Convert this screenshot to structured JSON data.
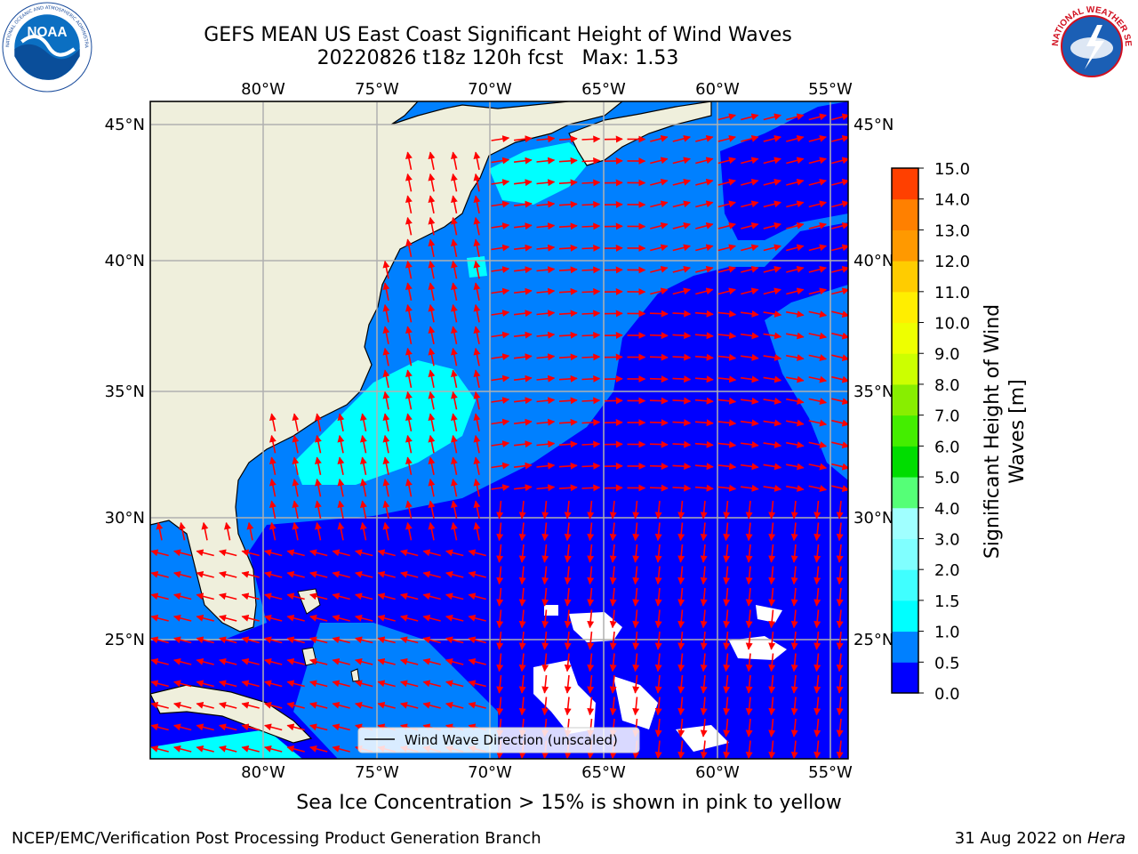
{
  "header": {
    "title_line1": "GEFS MEAN US East Coast Significant Height of Wind Waves",
    "title_line2": "20220826 t18z 120h fcst   Max: 1.53"
  },
  "logos": {
    "noaa": {
      "text": "NOAA",
      "ring_text": "NATIONAL OCEANIC AND ATMOSPHERIC ADMINISTRATION · U.S. DEPARTMENT OF COMMERCE"
    },
    "nws": {
      "ring_text": "NATIONAL WEATHER SERVICE"
    }
  },
  "map": {
    "lon_ticks": [
      "80°W",
      "75°W",
      "70°W",
      "65°W",
      "60°W",
      "55°W"
    ],
    "lat_ticks": [
      "45°N",
      "40°N",
      "35°N",
      "30°N",
      "25°N"
    ],
    "legend_label": "Wind Wave Direction (unscaled)",
    "land_color": "#efefdc",
    "grid_color": "#b0b0b0",
    "arrow_color": "#ff0000"
  },
  "colorbar": {
    "label_line1": "Significant Height of Wind",
    "label_line2": "Waves [m]",
    "ticks": [
      "0.0",
      "0.5",
      "1.0",
      "1.5",
      "2.0",
      "3.0",
      "4.0",
      "5.0",
      "6.0",
      "7.0",
      "8.0",
      "9.0",
      "10.0",
      "11.0",
      "12.0",
      "13.0",
      "14.0",
      "15.0"
    ],
    "colors": [
      "#0000ff",
      "#0080ff",
      "#00ffff",
      "#40ffff",
      "#80ffff",
      "#a0ffff",
      "#55ff77",
      "#00dd00",
      "#44ee00",
      "#88ee00",
      "#ccff00",
      "#eeff00",
      "#ffee00",
      "#ffcc00",
      "#ff9900",
      "#ff8000",
      "#ff4000",
      "#ff0000"
    ]
  },
  "footer": {
    "ice_note": "Sea Ice Concentration > 15% is shown in pink to yellow",
    "credit": "NCEP/EMC/Verification Post Processing Product Generation Branch",
    "date": "31 Aug 2022 on ",
    "host": "Hera"
  }
}
